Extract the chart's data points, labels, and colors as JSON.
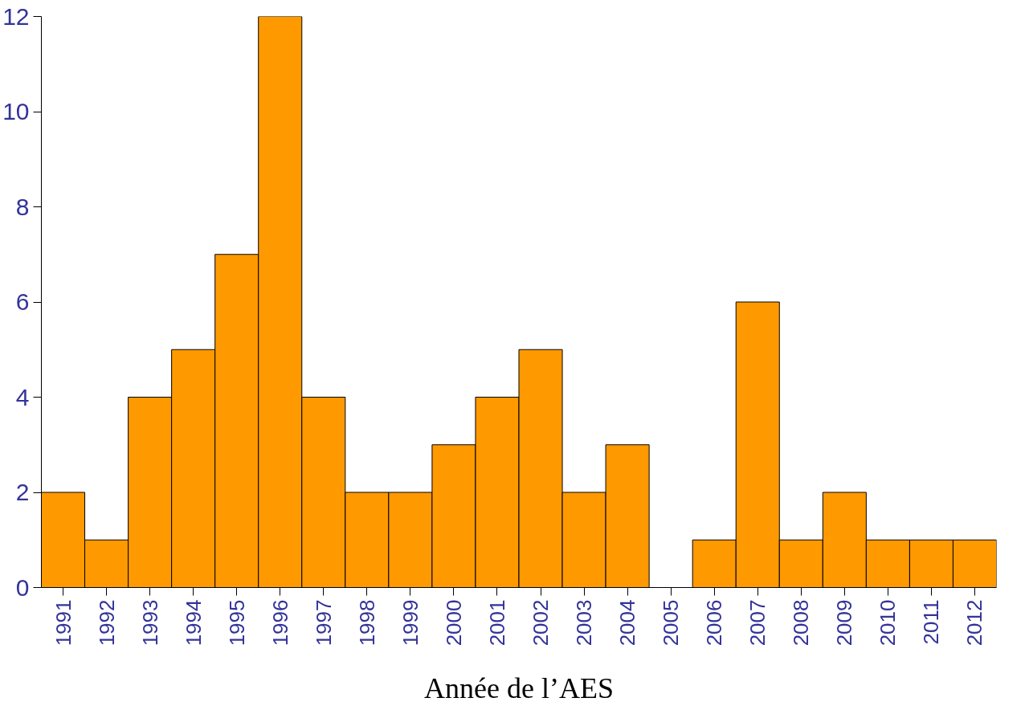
{
  "chart_data": {
    "type": "bar",
    "xlabel": "Année de l’AES",
    "categories": [
      "1991",
      "1992",
      "1993",
      "1994",
      "1995",
      "1996",
      "1997",
      "1998",
      "1999",
      "2000",
      "2001",
      "2002",
      "2003",
      "2004",
      "2005",
      "2006",
      "2007",
      "2008",
      "2009",
      "2010",
      "2011",
      "2012"
    ],
    "values": [
      2,
      1,
      4,
      5,
      7,
      12,
      4,
      2,
      2,
      3,
      4,
      5,
      2,
      3,
      0,
      1,
      6,
      1,
      2,
      1,
      1,
      1
    ],
    "color": "#ff9900",
    "ylim": [
      0,
      12
    ],
    "yticks": [
      0,
      2,
      4,
      6,
      8,
      10,
      12
    ],
    "grid": false
  }
}
